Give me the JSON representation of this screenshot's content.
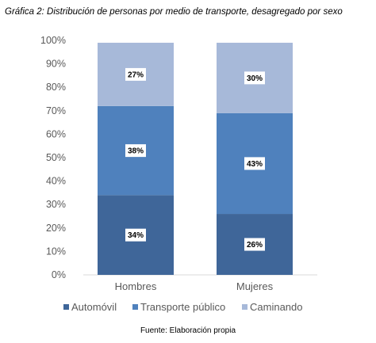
{
  "title": "Gráfica 2: Distribución de personas por medio de transporte, desagregado por sexo",
  "source": "Fuente: Elaboración propia",
  "chart_data": {
    "type": "bar",
    "stacked": true,
    "categories": [
      "Hombres",
      "Mujeres"
    ],
    "series": [
      {
        "name": "Automóvil",
        "color": "#3f6699",
        "values": [
          34,
          26
        ],
        "labels": [
          "34%",
          "26%"
        ]
      },
      {
        "name": "Transporte público",
        "color": "#4f81bd",
        "values": [
          38,
          43
        ],
        "labels": [
          "38%",
          "43%"
        ]
      },
      {
        "name": "Caminando",
        "color": "#a7b9d9",
        "values": [
          27,
          30
        ],
        "labels": [
          "27%",
          "30%"
        ]
      }
    ],
    "ylim": [
      0,
      100
    ],
    "yticks": [
      "0%",
      "10%",
      "20%",
      "30%",
      "40%",
      "50%",
      "60%",
      "70%",
      "80%",
      "90%",
      "100%"
    ],
    "grid": false,
    "legend_position": "bottom"
  }
}
